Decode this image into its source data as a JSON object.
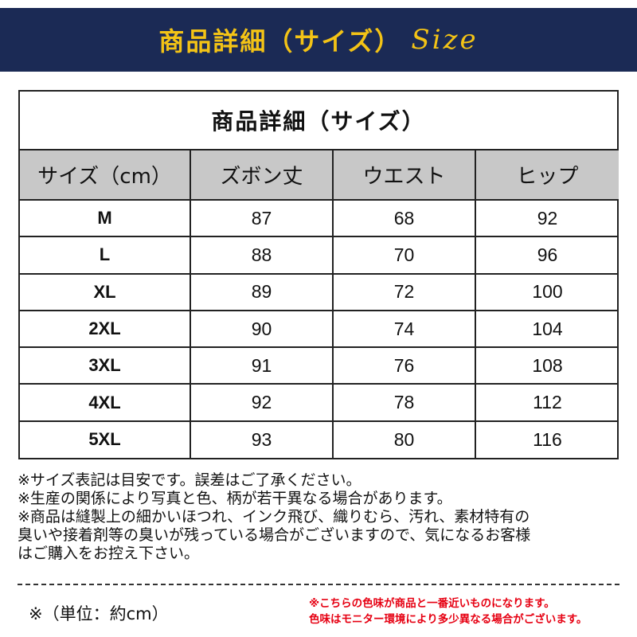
{
  "banner": {
    "title": "商品詳細（サイズ）",
    "script": "Size"
  },
  "table": {
    "caption": "商品詳細（サイズ）",
    "headers": [
      "サイズ（cm）",
      "ズボン丈",
      "ウエスト",
      "ヒップ"
    ],
    "rows": [
      [
        "M",
        "87",
        "68",
        "92"
      ],
      [
        "L",
        "88",
        "70",
        "96"
      ],
      [
        "XL",
        "89",
        "72",
        "100"
      ],
      [
        "2XL",
        "90",
        "74",
        "104"
      ],
      [
        "3XL",
        "91",
        "76",
        "108"
      ],
      [
        "4XL",
        "92",
        "78",
        "112"
      ],
      [
        "5XL",
        "93",
        "80",
        "116"
      ]
    ]
  },
  "notes": [
    "※サイズ表記は目安です。誤差はご了承ください。",
    "※生産の関係により写真と色、柄が若干異なる場合があります。",
    "※商品は縫製上の細かいほつれ、インク飛び、織りむら、汚れ、素材特有の",
    "臭いや接着剤等の臭いが残っている場合がございますので、気になるお客様",
    "はご購入をお控え下さい。"
  ],
  "unit_note": "※（単位：約cm）",
  "color_note": [
    "※こちらの色味が商品と一番近いものになります。",
    "色味はモニター環境により多少異なる場合がございます。"
  ],
  "colors": {
    "banner_bg": "#1b2a55",
    "banner_text": "#f3c316",
    "header_bg": "#c8c8c8",
    "warning_text": "#e60012"
  }
}
